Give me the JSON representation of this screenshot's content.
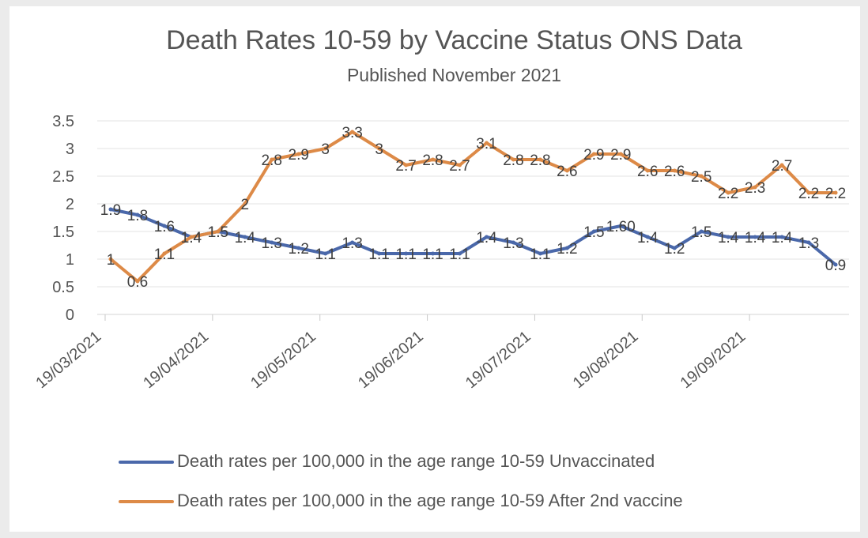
{
  "chart_data": {
    "type": "line",
    "title": "Death Rates 10-59  by Vaccine Status ONS Data",
    "subtitle": "Published November 2021",
    "xlabel": "",
    "ylabel": "",
    "ylim": [
      0,
      3.5
    ],
    "yticks": [
      "0",
      "0.5",
      "1",
      "1.5",
      "2",
      "2.5",
      "3",
      "3.5"
    ],
    "xtick_labels": [
      "19/03/2021",
      "19/04/2021",
      "19/05/2021",
      "19/06/2021",
      "19/07/2021",
      "19/08/2021",
      "19/09/2021"
    ],
    "grid": true,
    "legend_position": "bottom",
    "series": [
      {
        "name": "Death rates per 100,000 in the age range 10-59 Unvaccinated",
        "color": "#4a68aa",
        "values": [
          1.9,
          1.8,
          1.6,
          1.4,
          1.5,
          1.4,
          1.3,
          1.2,
          1.1,
          1.3,
          1.1,
          1.1,
          1.1,
          1.1,
          1.4,
          1.3,
          1.1,
          1.2,
          1.5,
          1.6,
          1.4,
          1.2,
          1.5,
          1.4,
          1.4,
          1.4,
          1.3,
          0.9
        ],
        "labels": [
          "1.9",
          "1.8",
          "1.6",
          "1.4",
          "1.5",
          "1.4",
          "1.3",
          "1.2",
          "1.1",
          "1.3",
          "1.1",
          "1.1",
          "1.1",
          "1.1",
          "1.4",
          "1.3",
          "1.1",
          "1.2",
          "1.5",
          "1.60",
          "1.4",
          "1.2",
          "1.5",
          "1.4",
          "1.4",
          "1.4",
          "1.3",
          "0.9"
        ]
      },
      {
        "name": "Death rates per 100,000 in the age range 10-59 After 2nd  vaccine",
        "color": "#dd8a47",
        "values": [
          1,
          0.6,
          1.1,
          1.4,
          1.5,
          2,
          2.8,
          2.9,
          3,
          3.3,
          3,
          2.7,
          2.8,
          2.7,
          3.1,
          2.8,
          2.8,
          2.6,
          2.9,
          2.9,
          2.6,
          2.6,
          2.5,
          2.2,
          2.3,
          2.7,
          2.2,
          2.2
        ],
        "labels": [
          "1",
          "0.6",
          "1.1",
          "1.4",
          "1.5",
          "2",
          "2.8",
          "2.9",
          "3",
          "3.3",
          "3",
          "2.7",
          "2.8",
          "2.7",
          "3.1",
          "2.8",
          "2.8",
          "2.6",
          "2.9",
          "2.9",
          "2.6",
          "2.6",
          "2.5",
          "2.2",
          "2.3",
          "2.7",
          "2.2",
          "2.2"
        ]
      }
    ]
  }
}
